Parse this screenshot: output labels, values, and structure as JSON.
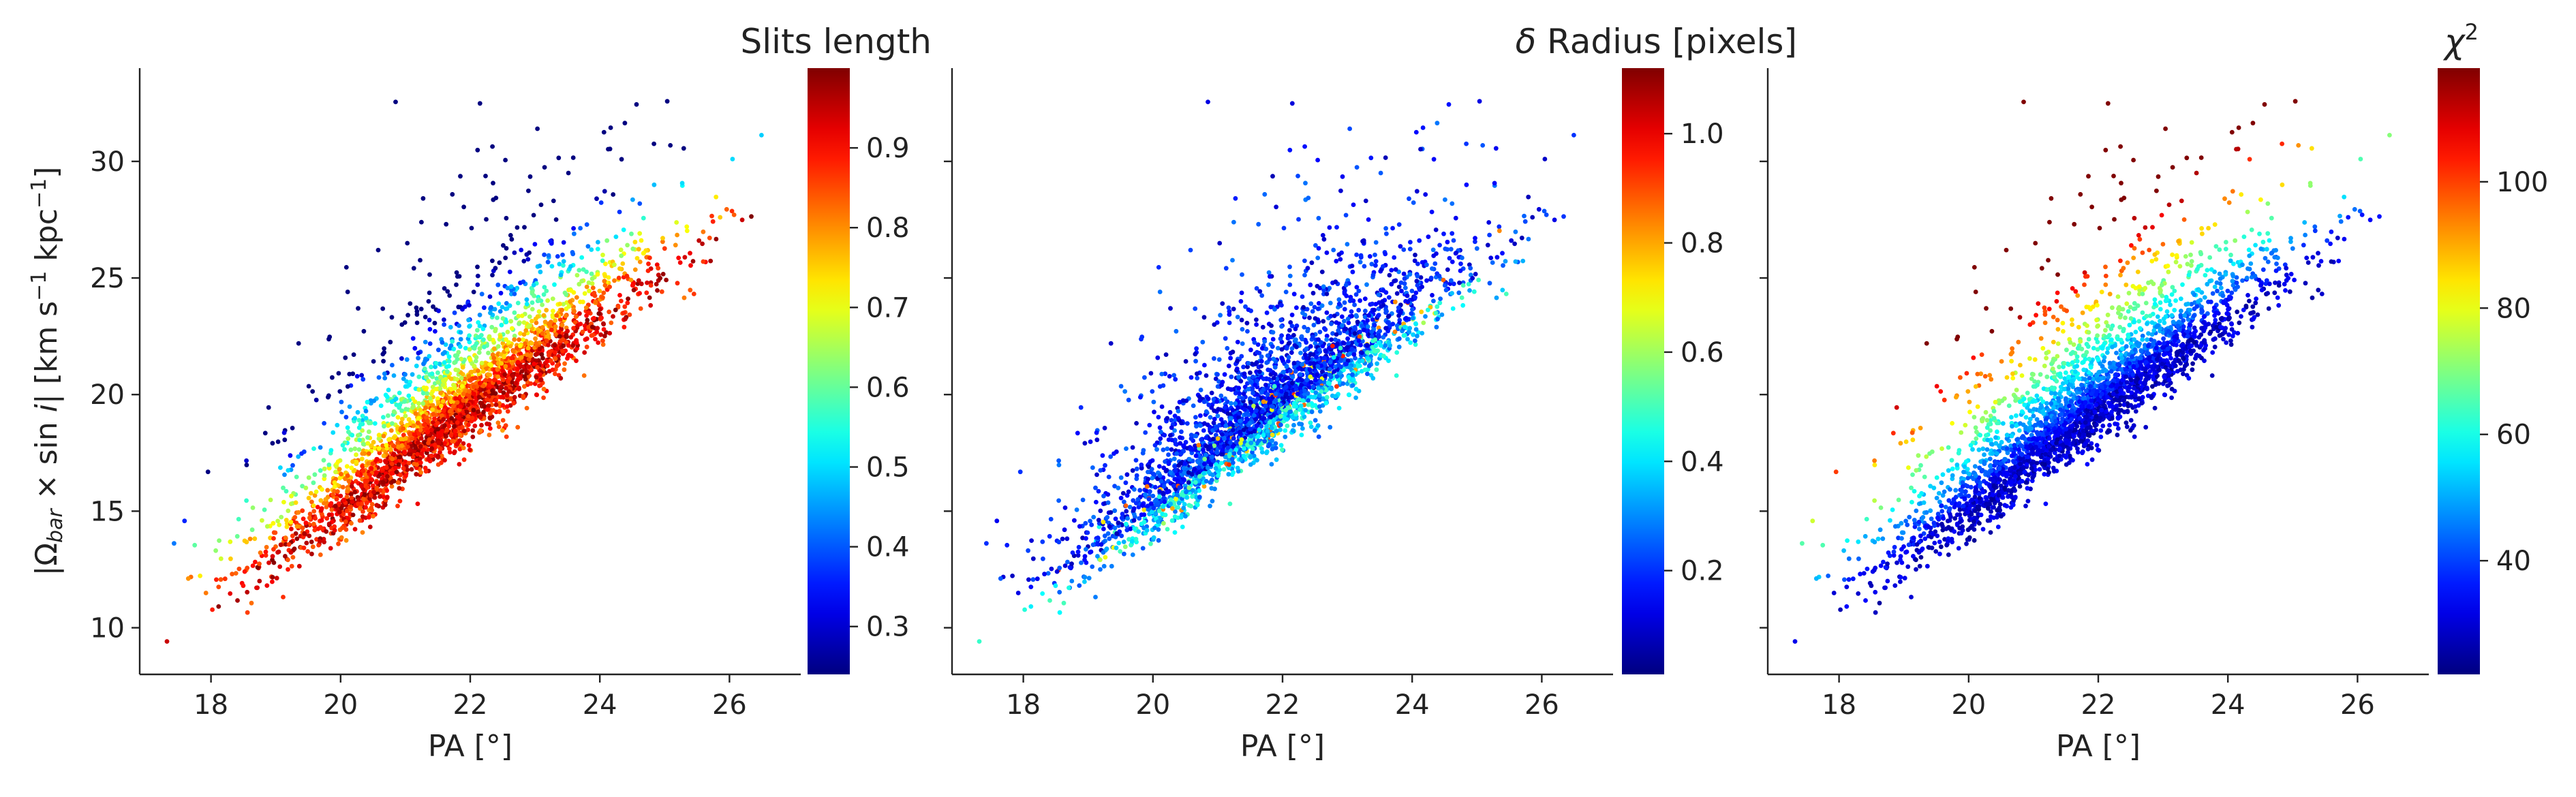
{
  "chart_data": [
    {
      "type": "scatter",
      "xlabel": "PA [°]",
      "ylabel": "|Ω_bar × sin i|  [km s⁻¹ kpc⁻¹]",
      "ylabel_parts": [
        "|Ω",
        "bar",
        " × sin ",
        "i",
        "|  [km s",
        "−1",
        " kpc",
        "−1",
        "]"
      ],
      "xlim": [
        16.9,
        27.1
      ],
      "ylim": [
        8.0,
        34.0
      ],
      "x_ticks": [
        18,
        20,
        22,
        24,
        26
      ],
      "y_ticks": [
        10,
        15,
        20,
        25,
        30
      ],
      "colorbar": {
        "title": "Slits length",
        "title_parts": [
          "Slits length"
        ],
        "colormap": "jet",
        "range": [
          0.24,
          1.0
        ],
        "ticks": [
          0.3,
          0.4,
          0.5,
          0.6,
          0.7,
          0.8,
          0.9
        ]
      },
      "color_trend": "high values along main ridge, low values above it",
      "n_points": 3000
    },
    {
      "type": "scatter",
      "xlabel": "PA [°]",
      "ylabel": "",
      "xlim": [
        16.9,
        27.1
      ],
      "ylim": [
        8.0,
        34.0
      ],
      "x_ticks": [
        18,
        20,
        22,
        24,
        26
      ],
      "y_ticks": [],
      "colorbar": {
        "title": "δ Radius [pixels]",
        "title_parts": [
          "δ",
          " Radius [pixels]"
        ],
        "colormap": "jet",
        "range": [
          0.01,
          1.12
        ],
        "ticks": [
          0.2,
          0.4,
          0.6,
          0.8,
          1.0
        ]
      },
      "color_trend": "mostly low values, a few moderate values",
      "n_points": 3000
    },
    {
      "type": "scatter",
      "xlabel": "PA [°]",
      "ylabel": "",
      "xlim": [
        16.9,
        27.1
      ],
      "ylim": [
        8.0,
        34.0
      ],
      "x_ticks": [
        18,
        20,
        22,
        24,
        26
      ],
      "y_ticks": [],
      "colorbar": {
        "title": "χ²",
        "title_parts": [
          "χ",
          "2"
        ],
        "colormap": "jet",
        "range": [
          22,
          118
        ],
        "ticks": [
          40,
          60,
          80,
          100
        ]
      },
      "color_trend": "low along main ridge, increasing with distance above it",
      "n_points": 3000
    }
  ],
  "ridge": {
    "x": [
      17.4,
      18.0,
      19.0,
      20.0,
      21.0,
      22.0,
      23.0,
      24.0,
      25.0,
      26.0
    ],
    "y": [
      10.3,
      11.2,
      13.0,
      15.2,
      17.4,
      19.5,
      21.5,
      23.5,
      25.3,
      27.0
    ]
  }
}
